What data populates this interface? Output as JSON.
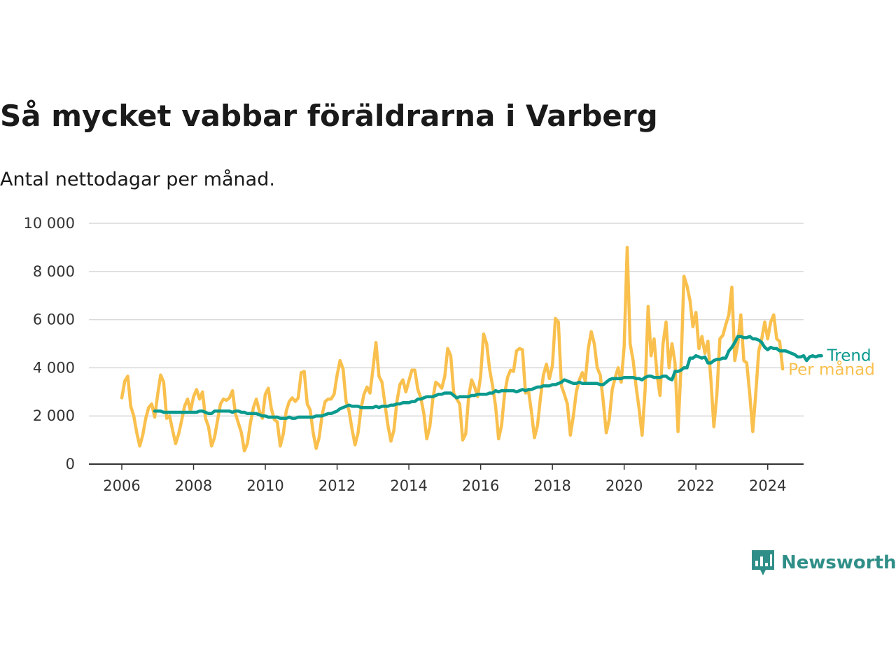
{
  "title": "Så mycket vabbar föräldrarna i Varberg",
  "subtitle": "Antal nettodagar per månad.",
  "brand": {
    "name": "Newsworthy",
    "icon": "newsworthy-logo-icon",
    "color": "#2f8f88"
  },
  "chart_data": {
    "type": "line",
    "x_type": "date-month",
    "ylim": [
      0,
      10000
    ],
    "yticks": [
      0,
      2000,
      4000,
      6000,
      8000,
      10000
    ],
    "ytick_labels": [
      "0",
      "2 000",
      "4 000",
      "6 000",
      "8 000",
      "10 000"
    ],
    "xticks": [
      2006,
      2008,
      2010,
      2012,
      2014,
      2016,
      2018,
      2020,
      2022,
      2024
    ],
    "xtick_labels": [
      "2006",
      "2008",
      "2010",
      "2012",
      "2014",
      "2016",
      "2018",
      "2020",
      "2022",
      "2024"
    ],
    "xlim": [
      "2005-02",
      "2025-01"
    ],
    "grid": true,
    "start": "2006-01",
    "series": [
      {
        "name": "Per månad",
        "color": "#f9c04e",
        "values": [
          2750,
          3450,
          3650,
          2400,
          2000,
          1300,
          750,
          1200,
          1900,
          2350,
          2500,
          1950,
          2900,
          3700,
          3400,
          1900,
          2000,
          1400,
          850,
          1250,
          1800,
          2400,
          2700,
          2200,
          2800,
          3100,
          2700,
          3000,
          1900,
          1550,
          750,
          1100,
          1800,
          2500,
          2700,
          2650,
          2750,
          3050,
          2100,
          1700,
          1300,
          550,
          850,
          1700,
          2350,
          2700,
          2200,
          1900,
          2900,
          3150,
          2300,
          1850,
          1750,
          750,
          1250,
          2200,
          2600,
          2750,
          2600,
          2750,
          3800,
          3850,
          2500,
          2250,
          1300,
          650,
          1100,
          2050,
          2600,
          2700,
          2700,
          2900,
          3700,
          4300,
          3950,
          2600,
          2200,
          1450,
          800,
          1300,
          2300,
          2900,
          3200,
          2950,
          3950,
          5050,
          3650,
          3400,
          2500,
          1600,
          950,
          1400,
          2600,
          3300,
          3500,
          3000,
          3450,
          3900,
          3900,
          3100,
          2750,
          2100,
          1050,
          1550,
          2700,
          3400,
          3300,
          3150,
          3650,
          4800,
          4500,
          2950,
          2700,
          2500,
          1000,
          1250,
          2800,
          3500,
          3200,
          2800,
          3650,
          5400,
          5000,
          3950,
          3250,
          2400,
          1050,
          1600,
          2900,
          3600,
          3900,
          3850,
          4700,
          4800,
          4750,
          2950,
          3050,
          2150,
          1100,
          1600,
          2750,
          3700,
          4150,
          3550,
          4100,
          6050,
          5900,
          3250,
          2900,
          2500,
          1200,
          2000,
          3000,
          3500,
          3800,
          3450,
          4800,
          5500,
          5000,
          4000,
          3700,
          2600,
          1300,
          1850,
          3100,
          3600,
          4000,
          3400,
          4900,
          9000,
          5000,
          4300,
          3200,
          2300,
          1200,
          3100,
          6550,
          4500,
          5200,
          3700,
          2850,
          5000,
          5900,
          4000,
          5000,
          4200,
          1350,
          4000,
          7800,
          7400,
          6800,
          5700,
          6300,
          4800,
          5300,
          4600,
          5100,
          3500,
          1550,
          2900,
          5200,
          5350,
          5800,
          6200,
          7350,
          4300,
          5000,
          6200,
          4300,
          4200,
          2900,
          1350,
          2900,
          4700,
          5200,
          5900,
          5200,
          5900,
          6200,
          5200,
          5100,
          3950
        ]
      },
      {
        "name": "Trend",
        "color": "#0b9a8e",
        "start": "2006-12",
        "values": [
          2200,
          2200,
          2200,
          2150,
          2150,
          2150,
          2150,
          2150,
          2150,
          2150,
          2150,
          2150,
          2150,
          2150,
          2150,
          2200,
          2200,
          2150,
          2100,
          2100,
          2200,
          2200,
          2200,
          2200,
          2200,
          2200,
          2150,
          2200,
          2200,
          2150,
          2150,
          2100,
          2100,
          2100,
          2100,
          2050,
          2000,
          2000,
          1950,
          1950,
          1950,
          1950,
          1900,
          1900,
          1900,
          1950,
          1900,
          1900,
          1950,
          1950,
          1950,
          1950,
          1950,
          1950,
          2000,
          2000,
          2000,
          2050,
          2100,
          2100,
          2150,
          2200,
          2300,
          2350,
          2400,
          2450,
          2400,
          2400,
          2400,
          2350,
          2350,
          2350,
          2350,
          2350,
          2400,
          2350,
          2400,
          2400,
          2400,
          2450,
          2450,
          2500,
          2500,
          2550,
          2550,
          2550,
          2600,
          2600,
          2700,
          2700,
          2750,
          2800,
          2800,
          2800,
          2850,
          2900,
          2900,
          2950,
          2950,
          2950,
          2850,
          2750,
          2800,
          2800,
          2800,
          2800,
          2850,
          2850,
          2900,
          2900,
          2900,
          2900,
          2950,
          2950,
          3050,
          3000,
          3050,
          3050,
          3050,
          3050,
          3050,
          3000,
          3050,
          3100,
          3050,
          3100,
          3100,
          3150,
          3200,
          3200,
          3250,
          3250,
          3250,
          3300,
          3300,
          3350,
          3400,
          3500,
          3450,
          3400,
          3350,
          3350,
          3400,
          3350,
          3350,
          3350,
          3350,
          3350,
          3350,
          3300,
          3300,
          3400,
          3500,
          3550,
          3550,
          3550,
          3550,
          3600,
          3600,
          3600,
          3600,
          3550,
          3550,
          3500,
          3600,
          3650,
          3650,
          3600,
          3600,
          3600,
          3650,
          3650,
          3550,
          3500,
          3850,
          3850,
          3900,
          4000,
          4000,
          4400,
          4400,
          4500,
          4450,
          4400,
          4450,
          4200,
          4200,
          4300,
          4350,
          4350,
          4400,
          4400,
          4700,
          4850,
          5050,
          5300,
          5300,
          5250,
          5250,
          5300,
          5200,
          5200,
          5150,
          5050,
          4850,
          4750,
          4850,
          4800,
          4800,
          4700,
          4700,
          4700,
          4650,
          4600,
          4550,
          4450,
          4450,
          4500,
          4300,
          4450,
          4500,
          4450,
          4500,
          4500
        ]
      }
    ]
  }
}
